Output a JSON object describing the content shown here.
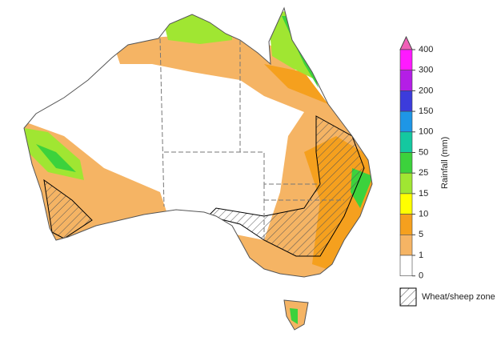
{
  "legend": {
    "title": "Rainfall (mm)",
    "ticks": [
      400,
      300,
      200,
      150,
      100,
      50,
      25,
      15,
      10,
      5,
      1,
      0
    ],
    "arrow_color": "#f060b8",
    "bin_colors": [
      "#ff1aff",
      "#b41ee6",
      "#3c3cdc",
      "#1e96e6",
      "#14c8a0",
      "#3cd23c",
      "#a0e632",
      "#ffff00",
      "#f5a01e",
      "#f5b464",
      "#ffffff"
    ]
  },
  "key": {
    "label": "Wheat/sheep zone"
  }
}
